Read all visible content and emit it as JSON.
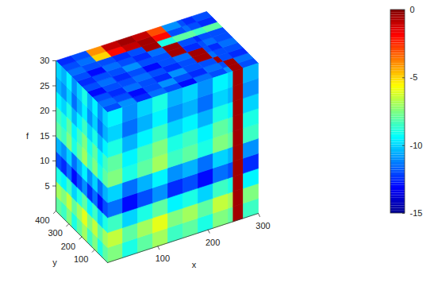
{
  "chart_data": {
    "type": "cube",
    "xlabel": "x",
    "ylabel": "y",
    "zlabel": "f",
    "xlim": [
      0,
      300
    ],
    "xticks": [
      100,
      200,
      300
    ],
    "ylim": [
      0,
      400
    ],
    "yticks": [
      100,
      200,
      300,
      400
    ],
    "zlim": [
      0,
      30
    ],
    "zticks": [
      5,
      10,
      15,
      20,
      25,
      30
    ],
    "colorbar": {
      "range": [
        -15,
        0
      ],
      "ticks": [
        0,
        -5,
        -10,
        -15
      ]
    },
    "faces": {
      "top": {
        "x_edges": [
          0,
          30,
          60,
          90,
          120,
          150,
          180,
          210,
          240,
          250,
          270,
          300
        ],
        "y_edges": [
          0,
          40,
          80,
          120,
          160,
          200,
          240,
          280,
          320,
          360,
          400
        ],
        "values": [
          [
            -12,
            -11,
            -12.5,
            -11.5,
            -12,
            -13,
            -11.5,
            -12,
            -11,
            -0.5,
            -12
          ],
          [
            -11.5,
            -12,
            -13,
            -12,
            -11,
            -12,
            -12.5,
            -11.5,
            -12,
            -0.5,
            -11.5
          ],
          [
            -12,
            -12.5,
            -11.5,
            -12,
            -12.5,
            -11,
            -12,
            -12,
            -0.5,
            -12,
            -12.5
          ],
          [
            -13,
            -12,
            -12,
            -11.5,
            -12,
            -12.5,
            -12,
            -0.5,
            -11.5,
            -12,
            -12
          ],
          [
            -12,
            -11.5,
            -12.5,
            -12,
            -13,
            -12,
            -11.5,
            -0.5,
            -12,
            -12.5,
            -11.5
          ],
          [
            -12.5,
            -12,
            -12,
            -11,
            -12,
            -12,
            -0.5,
            -12.5,
            -12,
            -11.5,
            -12
          ],
          [
            -12,
            -13,
            -11.5,
            -12,
            -12.5,
            -11.5,
            -0.5,
            -12,
            -12.5,
            -12,
            -12
          ],
          [
            -11.5,
            -12,
            -12,
            -12.5,
            -12,
            -0.5,
            -9,
            -8,
            -8,
            -8.5,
            -8
          ],
          [
            -12,
            -11.5,
            -5,
            -2,
            -1,
            -0.5,
            -2,
            -12,
            -11.5,
            -12,
            -12.5
          ],
          [
            -12.5,
            -12,
            -4,
            -1,
            -0.5,
            -1,
            -3,
            -11,
            -12,
            -12.5,
            -12
          ]
        ]
      },
      "y0": {
        "x_edges": [
          0,
          30,
          60,
          90,
          120,
          150,
          180,
          210,
          240,
          250,
          270,
          300
        ],
        "f_edges": [
          0,
          3,
          6,
          9,
          12,
          15,
          18,
          21,
          24,
          27,
          30
        ],
        "values": [
          [
            -7.5,
            -9,
            -8,
            -7,
            -8.5,
            -8,
            -9,
            -7.5,
            -8,
            -0.5,
            -8.5
          ],
          [
            -6.5,
            -8,
            -7,
            -6,
            -7.5,
            -7,
            -8,
            -6.5,
            -7,
            -0.5,
            -7.5
          ],
          [
            -8.5,
            -10,
            -9,
            -8,
            -9.5,
            -9,
            -10,
            -8.5,
            -9,
            -0.5,
            -9.5
          ],
          [
            -11.5,
            -13,
            -12,
            -11,
            -12.5,
            -12,
            -13,
            -11.5,
            -12,
            -0.5,
            -12.5
          ],
          [
            -10,
            -11.5,
            -10.5,
            -9.5,
            -11,
            -10.5,
            -11.5,
            -10,
            -10.5,
            -0.5,
            -11
          ],
          [
            -7.5,
            -9,
            -8,
            -7,
            -8.5,
            -8,
            -9,
            -7.5,
            -8,
            -0.5,
            -8.5
          ],
          [
            -8,
            -9.5,
            -8.5,
            -7.5,
            -9,
            -8.5,
            -9.5,
            -8,
            -8.5,
            -0.5,
            -9
          ],
          [
            -9,
            -10.5,
            -9.5,
            -8.5,
            -10,
            -9.5,
            -10.5,
            -9,
            -9.5,
            -0.5,
            -10
          ],
          [
            -10,
            -11.5,
            -10.5,
            -9.5,
            -11,
            -10.5,
            -11.5,
            -10,
            -10.5,
            -0.5,
            -11
          ],
          [
            -9.5,
            -11,
            -10,
            -9,
            -10.5,
            -10,
            -11,
            -9.5,
            -10,
            -0.5,
            -10.5
          ]
        ]
      },
      "x0": {
        "y_edges": [
          0,
          40,
          80,
          120,
          160,
          200,
          240,
          280,
          320,
          360,
          400
        ],
        "f_edges": [
          0,
          3,
          6,
          9,
          12,
          15,
          18,
          21,
          24,
          27,
          30
        ],
        "values": [
          [
            -8,
            -9,
            -7.5,
            -8.5,
            -7,
            -8,
            -9,
            -7.5,
            -8.5,
            -8
          ],
          [
            -7,
            -8,
            -6.5,
            -7.5,
            -6,
            -7,
            -8,
            -6.5,
            -7.5,
            -7
          ],
          [
            -9,
            -10,
            -8.5,
            -9.5,
            -8,
            -9,
            -10,
            -8.5,
            -9.5,
            -9
          ],
          [
            -12,
            -13,
            -11.5,
            -12.5,
            -11,
            -12,
            -13,
            -11.5,
            -12.5,
            -12
          ],
          [
            -10.5,
            -11.5,
            -10,
            -11,
            -9.5,
            -10.5,
            -11.5,
            -10,
            -11,
            -10.5
          ],
          [
            -8,
            -9,
            -7.5,
            -8.5,
            -7,
            -8,
            -9,
            -7.5,
            -8.5,
            -8
          ],
          [
            -8.5,
            -9.5,
            -8,
            -9,
            -7.5,
            -8.5,
            -9.5,
            -8,
            -9,
            -8.5
          ],
          [
            -9.5,
            -10.5,
            -9,
            -10,
            -8.5,
            -9.5,
            -10.5,
            -9,
            -10,
            -9.5
          ],
          [
            -10.5,
            -11.5,
            -10,
            -11,
            -9.5,
            -10.5,
            -11.5,
            -10,
            -11,
            -10.5
          ],
          [
            -10,
            -11,
            -9.5,
            -10.5,
            -9,
            -10,
            -11,
            -9.5,
            -10.5,
            -10
          ]
        ]
      }
    }
  }
}
